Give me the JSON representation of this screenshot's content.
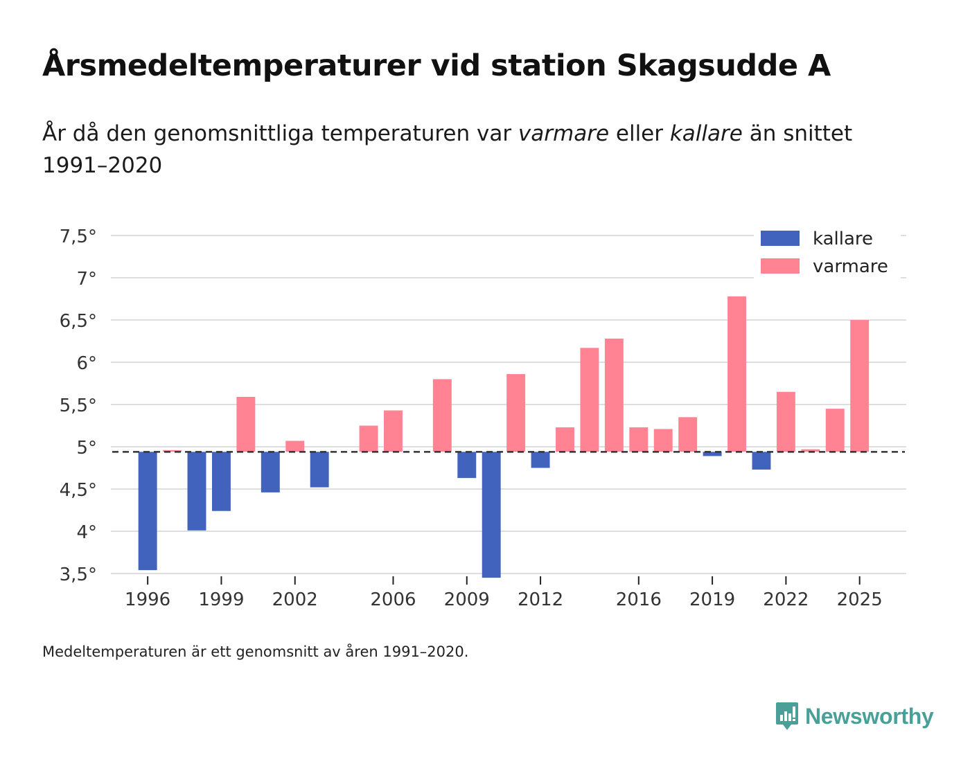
{
  "title": "Årsmedeltemperaturer vid station Skagsudde A",
  "subtitle": {
    "part1": "År då den genomsnittliga temperaturen var ",
    "warm_word": "varmare",
    "part2": " eller ",
    "cold_word": "kallare",
    "part3": " än snittet 1991–2020"
  },
  "footnote": "Medeltemperaturen är ett genomsnitt av åren 1991–2020.",
  "brand": "Newsworthy",
  "colors": {
    "cold": "#4163bd",
    "warm": "#ff8392",
    "grid": "#dedede",
    "baseline": "#333333",
    "brand": "#4a9f99"
  },
  "chart_data": {
    "type": "bar",
    "title": "Årsmedeltemperaturer vid station Skagsudde A",
    "baseline": 4.94,
    "ylim": [
      3.5,
      7.5
    ],
    "yticks": [
      3.5,
      4,
      4.5,
      5,
      5.5,
      6,
      6.5,
      7,
      7.5
    ],
    "ytick_labels": [
      "3,5°",
      "4°",
      "4,5°",
      "5°",
      "5,5°",
      "6°",
      "6,5°",
      "7°",
      "7,5°"
    ],
    "xlim": [
      1994.5,
      2026.9
    ],
    "xticks": [
      1996,
      1999,
      2002,
      2006,
      2009,
      2012,
      2016,
      2019,
      2022,
      2025
    ],
    "xtick_labels": [
      "1996",
      "1999",
      "2002",
      "2006",
      "2009",
      "2012",
      "2016",
      "2019",
      "2022",
      "2025"
    ],
    "legend": {
      "position": "top-right",
      "items": [
        {
          "key": "cold",
          "label": "kallare"
        },
        {
          "key": "warm",
          "label": "varmare"
        }
      ]
    },
    "years": [
      1996,
      1997,
      1998,
      1999,
      2000,
      2001,
      2002,
      2003,
      2004,
      2005,
      2006,
      2007,
      2008,
      2009,
      2010,
      2011,
      2012,
      2013,
      2014,
      2015,
      2016,
      2017,
      2018,
      2019,
      2020,
      2021,
      2022,
      2023,
      2024,
      2025
    ],
    "values": [
      3.54,
      4.96,
      4.01,
      4.24,
      5.59,
      4.46,
      5.07,
      4.52,
      null,
      5.25,
      5.43,
      null,
      5.8,
      4.63,
      3.45,
      5.86,
      4.75,
      5.23,
      6.17,
      6.28,
      5.23,
      5.21,
      5.35,
      4.89,
      6.78,
      4.73,
      5.65,
      4.97,
      5.45,
      6.5
    ]
  }
}
